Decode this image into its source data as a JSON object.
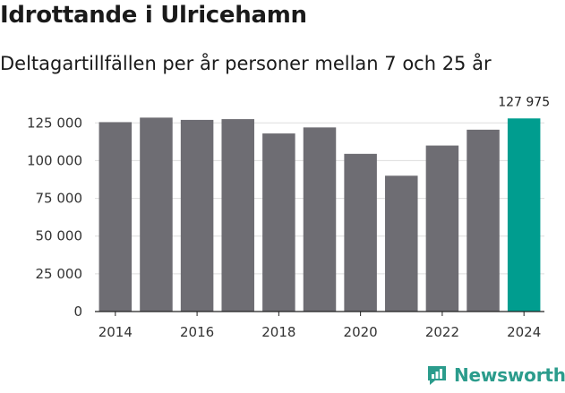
{
  "header": {
    "title": "Idrottande i Ulricehamn",
    "subtitle": "Deltagartillfällen per år personer mellan 7 och 25 år"
  },
  "chart_data": {
    "type": "bar",
    "x": [
      2014,
      2015,
      2016,
      2017,
      2018,
      2019,
      2020,
      2021,
      2022,
      2023,
      2024
    ],
    "values": [
      125500,
      128500,
      127000,
      127500,
      118000,
      122000,
      104500,
      90000,
      110000,
      120500,
      127975
    ],
    "y_ticks": [
      "0",
      "25 000",
      "50 000",
      "75 000",
      "100 000",
      "125 000"
    ],
    "x_ticks": [
      "2014",
      "2016",
      "2018",
      "2020",
      "2022",
      "2024"
    ],
    "ylim": [
      0,
      140000
    ],
    "highlight_label": "127 975",
    "grid": true,
    "colors": {
      "bar": "#6e6d73",
      "highlight": "#009d8f",
      "grid": "#dddddd"
    }
  },
  "brand": {
    "name": "Newsworthy",
    "icon": "newsworthy-logo-icon"
  }
}
